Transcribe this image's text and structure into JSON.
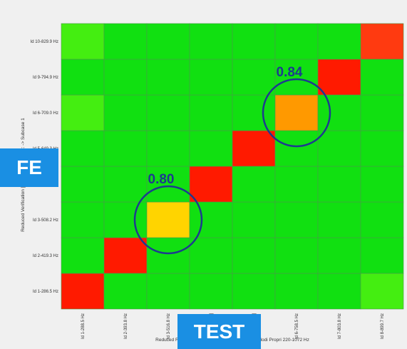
{
  "chart_data": {
    "type": "heatmap",
    "xlabel": "Reduced Reference Modes: [obscured] ... ntable: Modi Propri 220-1072 Hz",
    "ylabel": "Reduced Verification [obscured] ... le Set: -> Subcase 1",
    "y_labels": [
      "Id 1-286.5 Hz",
      "Id 2-419.3 Hz",
      "Id 3-508.2 Hz",
      "Id 4-[obscured]",
      "Id 5-649.3 Hz",
      "Id 6-709.0 Hz",
      "Id 9-794.9 Hz",
      "Id 10-829.9 Hz"
    ],
    "x_labels": [
      "Id 1-288.5 Hz",
      "Id 2-393.8 Hz",
      "Id 3-516.8 Hz",
      "Id 4-[obscured]",
      "Id 5-[obscured]",
      "Id 6-758.5 Hz",
      "Id 7-803.8 Hz",
      "Id 8-899.7 Hz"
    ],
    "colors": {
      "low": "#11e011",
      "low_plus": "#44ee11",
      "mid": "#ffd400",
      "mid_high": "#ff9900",
      "high": "#ff1a00",
      "high_orange": "#ff3a10"
    },
    "cells": [
      [
        1,
        0,
        0,
        0,
        0,
        0,
        0,
        0.1
      ],
      [
        0,
        1,
        0,
        0,
        0,
        0,
        0,
        0
      ],
      [
        0,
        0,
        0.8,
        0,
        0,
        0,
        0,
        0
      ],
      [
        0,
        0,
        0,
        1,
        0,
        0,
        0,
        0
      ],
      [
        0,
        0,
        0,
        0,
        1,
        0,
        0,
        0
      ],
      [
        0.1,
        0,
        0,
        0,
        0,
        0.84,
        0,
        0
      ],
      [
        0,
        0,
        0,
        0,
        0,
        0,
        1,
        0
      ],
      [
        0.1,
        0,
        0,
        0,
        0,
        0,
        0,
        0.95
      ]
    ],
    "annotations": [
      {
        "text": "0.80",
        "row": 2,
        "col": 2
      },
      {
        "text": "0.84",
        "row": 5,
        "col": 5
      }
    ]
  },
  "callouts": {
    "fe": "FE",
    "test": "TEST"
  }
}
